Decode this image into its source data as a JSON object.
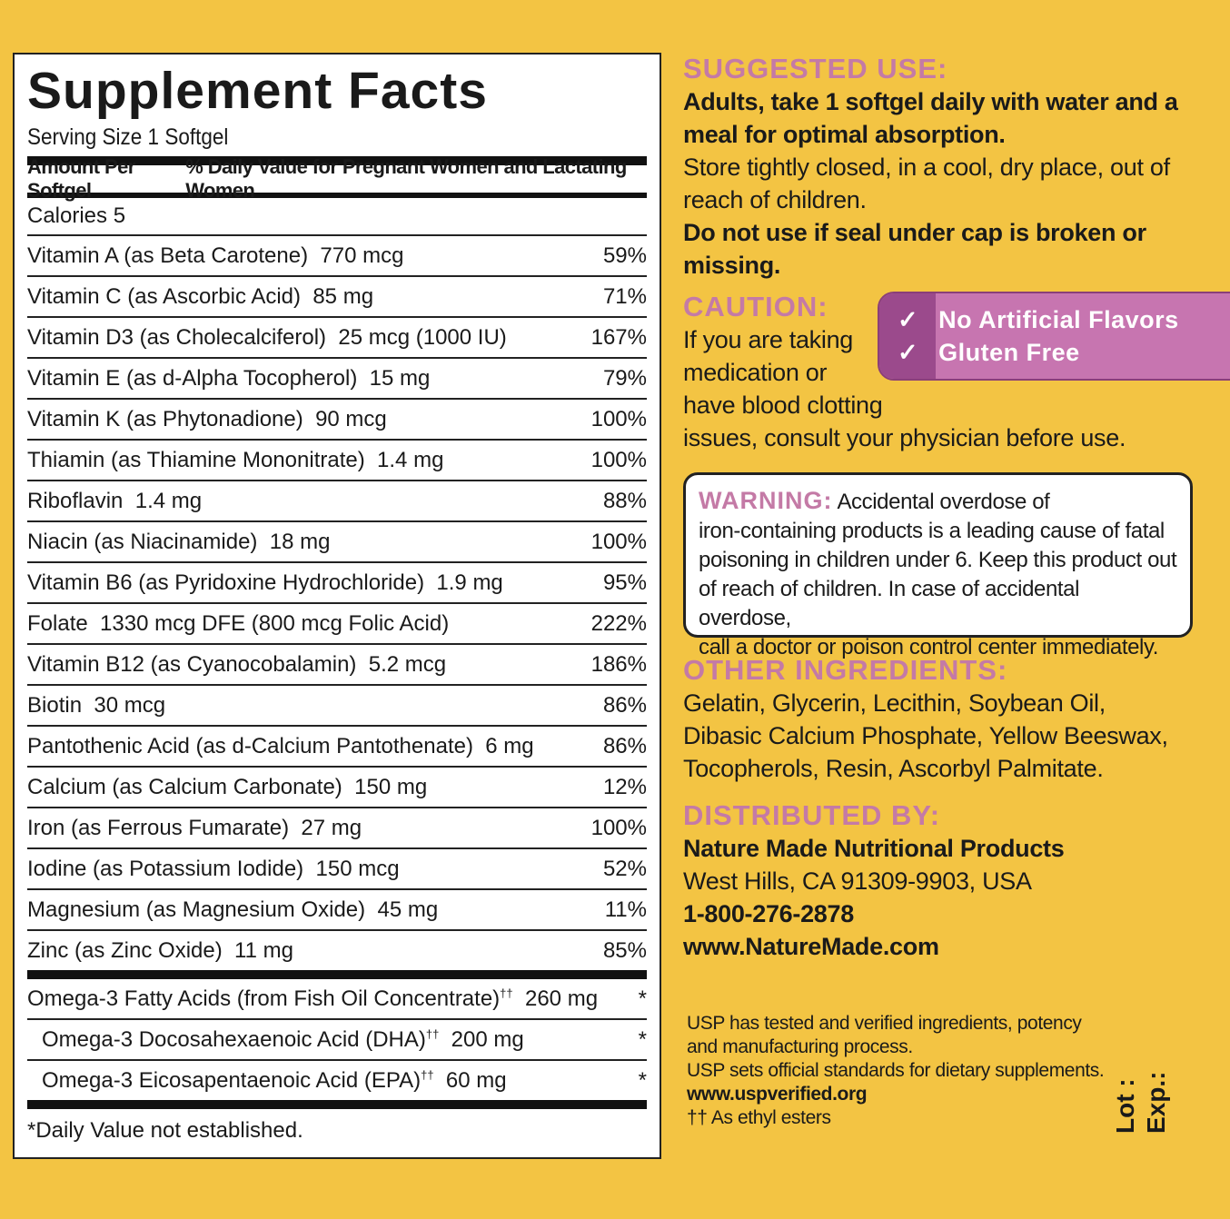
{
  "facts": {
    "title": "Supplement Facts",
    "serving": "Serving Size 1 Softgel",
    "header_amount": "Amount Per Softgel",
    "header_dv": "% Daily Value for Pregnant Women and Lactating Women",
    "calories": "Calories 5",
    "rows": [
      {
        "name": "Vitamin A (as Beta Carotene)  770 mcg",
        "dv": "59%"
      },
      {
        "name": "Vitamin C (as Ascorbic Acid)  85 mg",
        "dv": "71%"
      },
      {
        "name": "Vitamin D3 (as Cholecalciferol)  25 mcg (1000 IU)",
        "dv": "167%"
      },
      {
        "name": "Vitamin E (as d-Alpha Tocopherol)  15 mg",
        "dv": "79%"
      },
      {
        "name": "Vitamin K (as Phytonadione)  90 mcg",
        "dv": "100%"
      },
      {
        "name": "Thiamin (as Thiamine Mononitrate)  1.4 mg",
        "dv": "100%"
      },
      {
        "name": "Riboflavin  1.4 mg",
        "dv": "88%"
      },
      {
        "name": "Niacin (as Niacinamide)  18 mg",
        "dv": "100%"
      },
      {
        "name": "Vitamin B6 (as Pyridoxine Hydrochloride)  1.9 mg",
        "dv": "95%"
      },
      {
        "name": "Folate  1330 mcg DFE (800 mcg Folic Acid)",
        "dv": "222%"
      },
      {
        "name": "Vitamin B12 (as Cyanocobalamin)  5.2 mcg",
        "dv": "186%"
      },
      {
        "name": "Biotin  30 mcg",
        "dv": "86%"
      },
      {
        "name": "Pantothenic Acid (as d-Calcium Pantothenate)  6 mg",
        "dv": "86%"
      },
      {
        "name": "Calcium (as Calcium Carbonate)  150 mg",
        "dv": "12%"
      },
      {
        "name": "Iron (as Ferrous Fumarate)  27 mg",
        "dv": "100%"
      },
      {
        "name": "Iodine (as Potassium Iodide)  150 mcg",
        "dv": "52%"
      },
      {
        "name": "Magnesium (as Magnesium Oxide)  45 mg",
        "dv": "11%"
      },
      {
        "name": "Zinc (as Zinc Oxide)  11 mg",
        "dv": "85%"
      }
    ],
    "omega": [
      {
        "name": "Omega-3 Fatty Acids (from Fish Oil Concentrate)",
        "mark": "††",
        "amount": "260 mg",
        "dv": "*"
      },
      {
        "name": "Omega-3 Docosahexaenoic Acid (DHA)",
        "mark": "††",
        "amount": "200 mg",
        "dv": "*"
      },
      {
        "name": "Omega-3 Eicosapentaenoic Acid (EPA)",
        "mark": "††",
        "amount": "60 mg",
        "dv": "*"
      }
    ],
    "footnote": "*Daily Value not established."
  },
  "suggested": {
    "heading": "SUGGESTED USE:",
    "bold1": "Adults, take 1 softgel daily with water and a",
    "bold2": "meal for optimal absorption.",
    "line3": "Store tightly closed, in a cool, dry place, out of",
    "line4": "reach of children.",
    "bold5": "Do not use if seal under cap is broken or",
    "bold6": "missing."
  },
  "caution": {
    "heading": "CAUTION:",
    "l1": "If you are taking",
    "l2": "medication or",
    "l3": "have blood clotting",
    "l4": "issues, consult your physician before use."
  },
  "badge": {
    "items": [
      "No Artificial Flavors",
      "Gluten Free"
    ],
    "check": "✓"
  },
  "warning": {
    "heading": "WARNING:",
    "l1": "Accidental overdose of",
    "l2": "iron-containing products is a leading cause of fatal",
    "l3": "poisoning in children under 6. Keep this product out",
    "l4": "of reach of children. In case of accidental overdose,",
    "l5": "call a doctor or poison control center immediately."
  },
  "other": {
    "heading": "OTHER INGREDIENTS:",
    "l1": "Gelatin, Glycerin, Lecithin, Soybean Oil,",
    "l2": "Dibasic Calcium Phosphate, Yellow Beeswax,",
    "l3": "Tocopherols, Resin, Ascorbyl Palmitate."
  },
  "distributed": {
    "heading": "DISTRIBUTED BY:",
    "company": "Nature Made Nutritional Products",
    "address": "West Hills, CA 91309-9903, USA",
    "phone": "1-800-276-2878",
    "web": "www.NatureMade.com"
  },
  "usp": {
    "l1": "USP has tested and verified ingredients, potency",
    "l2": "and manufacturing process.",
    "l3": "USP sets official standards for dietary supplements.",
    "web": "www.uspverified.org",
    "ester": "†† As ethyl esters"
  },
  "lot": {
    "lot": "Lot :",
    "exp": "Exp.:"
  },
  "colors": {
    "background": "#f3c443",
    "heading_pink": "#c47aa6",
    "badge": "#c775b0"
  }
}
